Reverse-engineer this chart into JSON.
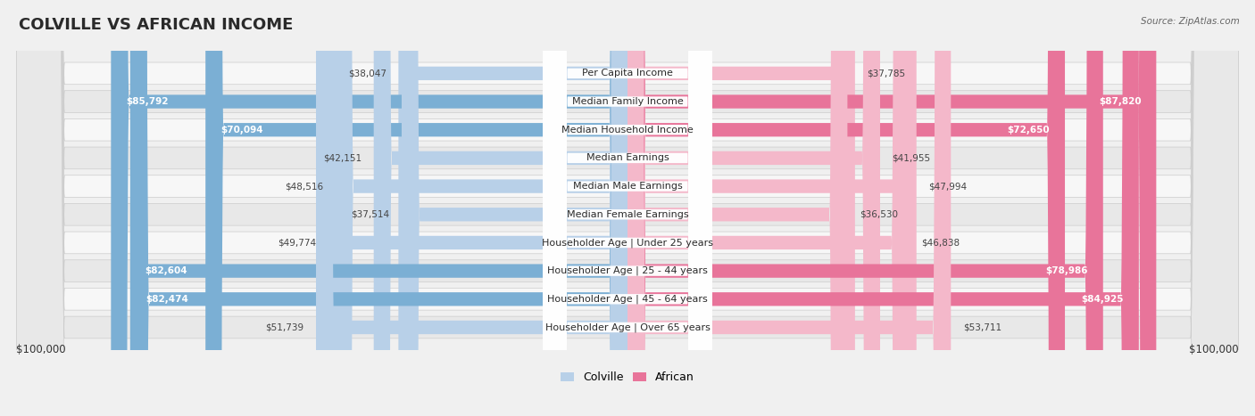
{
  "title": "COLVILLE VS AFRICAN INCOME",
  "source": "Source: ZipAtlas.com",
  "categories": [
    "Per Capita Income",
    "Median Family Income",
    "Median Household Income",
    "Median Earnings",
    "Median Male Earnings",
    "Median Female Earnings",
    "Householder Age | Under 25 years",
    "Householder Age | 25 - 44 years",
    "Householder Age | 45 - 64 years",
    "Householder Age | Over 65 years"
  ],
  "colville_values": [
    38047,
    85792,
    70094,
    42151,
    48516,
    37514,
    49774,
    82604,
    82474,
    51739
  ],
  "african_values": [
    37785,
    87820,
    72650,
    41955,
    47994,
    36530,
    46838,
    78986,
    84925,
    53711
  ],
  "colville_labels": [
    "$38,047",
    "$85,792",
    "$70,094",
    "$42,151",
    "$48,516",
    "$37,514",
    "$49,774",
    "$82,604",
    "$82,474",
    "$51,739"
  ],
  "african_labels": [
    "$37,785",
    "$87,820",
    "$72,650",
    "$41,955",
    "$47,994",
    "$36,530",
    "$46,838",
    "$78,986",
    "$84,925",
    "$53,711"
  ],
  "colville_color_light": "#b8d0e8",
  "colville_color_dark": "#7bafd4",
  "african_color_light": "#f4b8ca",
  "african_color_dark": "#e8749a",
  "max_value": 100000,
  "background_color": "#f0f0f0",
  "row_bg_odd": "#f7f7f7",
  "row_bg_even": "#e8e8e8",
  "title_fontsize": 13,
  "label_fontsize": 8.0,
  "value_fontsize": 7.5,
  "legend_fontsize": 9,
  "threshold_dark": 0.65
}
